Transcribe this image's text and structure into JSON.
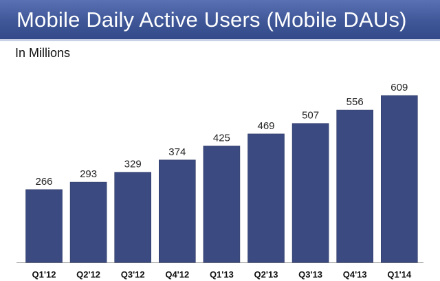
{
  "header": {
    "title": "Mobile Daily Active Users (Mobile DAUs)"
  },
  "subtitle": "In Millions",
  "colors": {
    "bar": "#3b4a80",
    "title_bar": "#3f5797"
  },
  "chart_data": {
    "type": "bar",
    "title": "Mobile Daily Active Users (Mobile DAUs)",
    "ylabel": "In Millions",
    "xlabel": "",
    "categories": [
      "Q1'12",
      "Q2'12",
      "Q3'12",
      "Q4'12",
      "Q1'13",
      "Q2'13",
      "Q3'13",
      "Q4'13",
      "Q1'14"
    ],
    "values": [
      266,
      293,
      329,
      374,
      425,
      469,
      507,
      556,
      609
    ],
    "ylim": [
      0,
      609
    ],
    "grid": false,
    "legend": "none"
  }
}
